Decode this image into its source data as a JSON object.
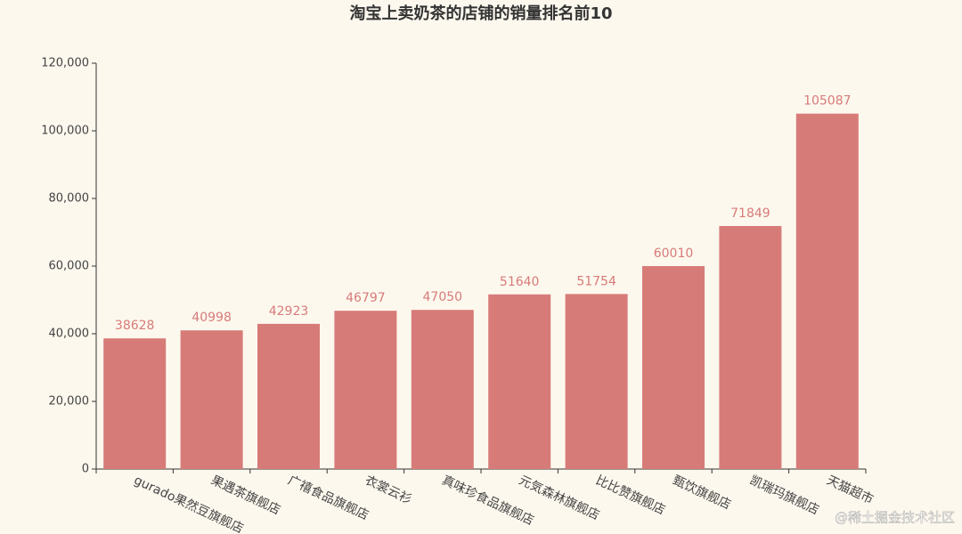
{
  "chart_data": {
    "type": "bar",
    "title": "淘宝上卖奶茶的店铺的销量排名前10",
    "categories": [
      "gurado果然豆旗舰店",
      "果遇茶旗舰店",
      "广禧食品旗舰店",
      "衣裳云衫",
      "真味珍食品旗舰店",
      "元気森林旗舰店",
      "比比赞旗舰店",
      "甄饮旗舰店",
      "凯瑞玛旗舰店",
      "天猫超市"
    ],
    "values": [
      38628,
      40998,
      42923,
      46797,
      47050,
      51640,
      51754,
      60010,
      71849,
      105087
    ],
    "color": "#d77b79",
    "ylim": [
      0,
      120000
    ],
    "yticks": [
      0,
      {
        "value": 20000,
        "label": "20,000"
      },
      {
        "value": 40000,
        "label": "40,000"
      },
      {
        "value": 60000,
        "label": "60,000"
      },
      {
        "value": 80000,
        "label": "80,000"
      },
      {
        "value": 100000,
        "label": "100,000"
      },
      {
        "value": 120000,
        "label": "120,000"
      }
    ],
    "grid": false,
    "watermark": "@稀土掘金技术社区"
  }
}
